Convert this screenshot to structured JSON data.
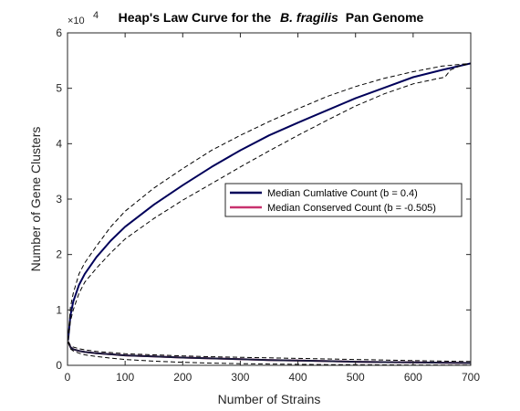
{
  "chart_data": {
    "type": "line",
    "title": "Heap's Law Curve for the",
    "title_italic": "B. fragilis",
    "title_suffix": "Pan Genome",
    "xlabel": "Number of Strains",
    "ylabel": "Number of Gene Clusters",
    "y_exponent_base": "×10",
    "y_exponent_power": "4",
    "xlim": [
      0,
      700
    ],
    "ylim": [
      0,
      60000
    ],
    "x_ticks": [
      0,
      100,
      200,
      300,
      400,
      500,
      600,
      700
    ],
    "x_tick_labels": [
      "0",
      "100",
      "200",
      "300",
      "400",
      "500",
      "600",
      "700"
    ],
    "y_ticks": [
      0,
      10000,
      20000,
      30000,
      40000,
      50000,
      60000
    ],
    "y_tick_labels": [
      "0",
      "1",
      "2",
      "3",
      "4",
      "5",
      "6"
    ],
    "grid": false,
    "legend_position": "center-right",
    "series": [
      {
        "name": "Median Cumlative Count (b = 0.4)",
        "color": "#00005a",
        "style": "solid",
        "in_legend": true,
        "x": [
          1,
          5,
          10,
          20,
          30,
          50,
          75,
          100,
          150,
          200,
          250,
          300,
          350,
          400,
          450,
          500,
          550,
          600,
          650,
          700
        ],
        "y": [
          4500,
          9000,
          11500,
          14500,
          16500,
          19500,
          22500,
          25000,
          29000,
          32500,
          35800,
          38800,
          41500,
          43800,
          46000,
          48200,
          50100,
          52000,
          53300,
          54500
        ]
      },
      {
        "name": "Upper bound (cumulative)",
        "color": "#000000",
        "style": "dashed",
        "in_legend": false,
        "x": [
          1,
          5,
          10,
          20,
          30,
          50,
          75,
          100,
          150,
          200,
          250,
          300,
          350,
          400,
          450,
          500,
          550,
          600,
          650,
          700
        ],
        "y": [
          4500,
          10500,
          13000,
          16500,
          18500,
          21500,
          25000,
          27800,
          32000,
          35500,
          38800,
          41500,
          44000,
          46300,
          48500,
          50300,
          51800,
          53000,
          54000,
          54500
        ]
      },
      {
        "name": "Lower bound (cumulative)",
        "color": "#000000",
        "style": "dashed",
        "in_legend": false,
        "x": [
          1,
          5,
          10,
          20,
          30,
          50,
          75,
          100,
          150,
          200,
          250,
          300,
          350,
          400,
          450,
          500,
          550,
          600,
          640,
          655,
          665,
          680,
          700
        ],
        "y": [
          4500,
          8000,
          10000,
          13000,
          15000,
          17500,
          20300,
          22800,
          26500,
          29800,
          32800,
          35800,
          38700,
          41500,
          44200,
          46800,
          49000,
          50800,
          51700,
          52000,
          53300,
          54000,
          54500
        ]
      },
      {
        "name": "Median Conserved Count (b = -0.505)",
        "color": "#c8326e",
        "style": "solid",
        "in_legend": true,
        "x": [
          1,
          5,
          10,
          20,
          30,
          50,
          75,
          100,
          150,
          200,
          250,
          300,
          350,
          400,
          450,
          500,
          550,
          600,
          650,
          700
        ],
        "y": [
          4300,
          3300,
          2900,
          2600,
          2400,
          2200,
          2000,
          1800,
          1600,
          1400,
          1250,
          1100,
          950,
          850,
          750,
          650,
          580,
          520,
          470,
          420
        ]
      },
      {
        "name": "Conserved line (dark)",
        "color": "#1a1a3c",
        "style": "solid",
        "in_legend": false,
        "x": [
          1,
          5,
          10,
          20,
          30,
          50,
          75,
          100,
          150,
          200,
          250,
          300,
          350,
          400,
          450,
          500,
          550,
          600,
          650,
          700
        ],
        "y": [
          4300,
          3300,
          2900,
          2600,
          2400,
          2200,
          2000,
          1800,
          1600,
          1400,
          1250,
          1100,
          950,
          850,
          750,
          650,
          580,
          520,
          470,
          420
        ]
      },
      {
        "name": "Upper bound (conserved)",
        "color": "#000000",
        "style": "dashed",
        "in_legend": false,
        "x": [
          1,
          5,
          10,
          20,
          30,
          50,
          75,
          100,
          150,
          200,
          250,
          300,
          350,
          400,
          450,
          500,
          550,
          600,
          650,
          700
        ],
        "y": [
          4300,
          3600,
          3300,
          3000,
          2800,
          2500,
          2300,
          2100,
          1900,
          1700,
          1550,
          1450,
          1350,
          1250,
          1150,
          1050,
          950,
          850,
          750,
          700
        ]
      },
      {
        "name": "Lower bound (conserved)",
        "color": "#000000",
        "style": "dashed",
        "in_legend": false,
        "x": [
          1,
          5,
          10,
          20,
          30,
          50,
          75,
          100,
          150,
          200,
          250,
          300,
          350,
          400,
          450,
          500,
          550,
          600,
          650,
          700
        ],
        "y": [
          4300,
          3000,
          2600,
          2200,
          1900,
          1600,
          1300,
          1050,
          750,
          550,
          400,
          300,
          230,
          180,
          140,
          110,
          90,
          70,
          55,
          50
        ]
      }
    ]
  }
}
